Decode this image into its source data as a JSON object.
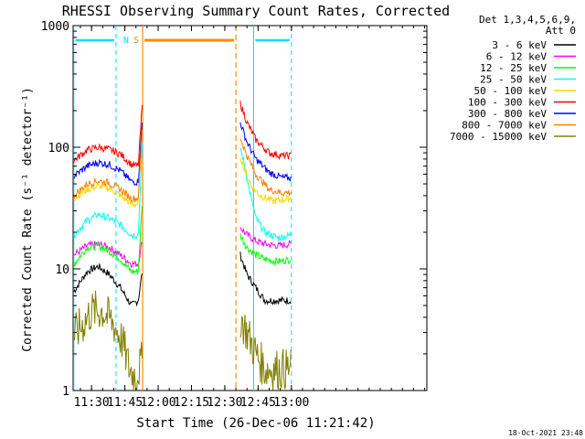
{
  "chart_data": {
    "type": "line",
    "title": "RHESSI Observing Summary Count Rates, Corrected",
    "xlabel": "Start Time (26-Dec-06 11:21:42)",
    "ylabel": "Corrected Count Rate (s⁻¹ detector⁻¹)",
    "yscale": "log",
    "ylim": [
      1,
      1000
    ],
    "xlim_minutes": [
      21.7,
      181.0
    ],
    "xtick_labels": [
      "11:30",
      "11:45",
      "12:00",
      "12:15",
      "12:30",
      "12:45",
      "13:00"
    ],
    "xtick_minutes": [
      30,
      45,
      60,
      75,
      90,
      105,
      120
    ],
    "ytick_labels": [
      "1",
      "10",
      "100",
      "1000"
    ],
    "ytick_values": [
      1,
      10,
      100,
      1000
    ],
    "legend_header": [
      "Det 1,3,4,5,6,9,",
      "Att 0"
    ],
    "legend_position": "right",
    "flags": [
      {
        "label": "",
        "color": "#00e0ff",
        "start": 22,
        "end": 41
      },
      {
        "label": "N",
        "color": "#00e0ff",
        "start": 41,
        "end": 41
      },
      {
        "label": "S",
        "color": "#ff8c00",
        "start": 53,
        "end": 53
      },
      {
        "label": "",
        "color": "#ff8c00",
        "start": 53,
        "end": 95
      },
      {
        "label": "",
        "color": "#00e0ff",
        "start": 103,
        "end": 120
      }
    ],
    "night_boundaries": [
      22,
      41,
      103,
      120
    ],
    "saa_boundaries": [
      53,
      95
    ],
    "gap": [
      54,
      97
    ],
    "footer": "18-Oct-2021 23:48",
    "series": [
      {
        "name": "3 - 6 keV",
        "color": "#000000",
        "pre": [
          [
            22,
            6.5
          ],
          [
            28,
            9.5
          ],
          [
            33,
            10.5
          ],
          [
            38,
            9
          ],
          [
            43,
            7
          ],
          [
            48,
            5
          ],
          [
            51,
            5.5
          ],
          [
            53,
            10
          ]
        ],
        "post": [
          [
            97,
            13
          ],
          [
            100,
            9
          ],
          [
            104,
            7
          ],
          [
            108,
            5.5
          ],
          [
            112,
            5.5
          ],
          [
            120,
            5.5
          ]
        ]
      },
      {
        "name": "6 - 12 keV",
        "color": "#ff00ff",
        "pre": [
          [
            22,
            13
          ],
          [
            28,
            15.5
          ],
          [
            33,
            16
          ],
          [
            38,
            15
          ],
          [
            43,
            13
          ],
          [
            48,
            11
          ],
          [
            51,
            11
          ],
          [
            53,
            18
          ]
        ],
        "post": [
          [
            97,
            22
          ],
          [
            100,
            19
          ],
          [
            104,
            17
          ],
          [
            108,
            16
          ],
          [
            114,
            15.5
          ],
          [
            120,
            16
          ]
        ]
      },
      {
        "name": "12 - 25 keV",
        "color": "#00ff00",
        "pre": [
          [
            22,
            11
          ],
          [
            28,
            15
          ],
          [
            33,
            15.5
          ],
          [
            38,
            14
          ],
          [
            43,
            12
          ],
          [
            48,
            9.5
          ],
          [
            51,
            9.5
          ],
          [
            53,
            40
          ]
        ],
        "post": [
          [
            97,
            19
          ],
          [
            100,
            15
          ],
          [
            104,
            13
          ],
          [
            108,
            12
          ],
          [
            114,
            11.5
          ],
          [
            120,
            12
          ]
        ]
      },
      {
        "name": "25 - 50 keV",
        "color": "#00ffff",
        "pre": [
          [
            22,
            19
          ],
          [
            28,
            25
          ],
          [
            33,
            28
          ],
          [
            38,
            26
          ],
          [
            43,
            23
          ],
          [
            48,
            19
          ],
          [
            51,
            19
          ],
          [
            53,
            120
          ]
        ],
        "post": [
          [
            97,
            100
          ],
          [
            99,
            70
          ],
          [
            101,
            45
          ],
          [
            104,
            26
          ],
          [
            108,
            20
          ],
          [
            114,
            18
          ],
          [
            120,
            19
          ]
        ]
      },
      {
        "name": "50 - 100 keV",
        "color": "#ffd700",
        "pre": [
          [
            22,
            38
          ],
          [
            28,
            45
          ],
          [
            33,
            48
          ],
          [
            38,
            46
          ],
          [
            43,
            40
          ],
          [
            48,
            34
          ],
          [
            51,
            34
          ],
          [
            53,
            150
          ]
        ],
        "post": [
          [
            97,
            85
          ],
          [
            99,
            65
          ],
          [
            102,
            48
          ],
          [
            106,
            40
          ],
          [
            112,
            36
          ],
          [
            120,
            38
          ]
        ]
      },
      {
        "name": "100 - 300 keV",
        "color": "#ff0000",
        "pre": [
          [
            22,
            78
          ],
          [
            28,
            95
          ],
          [
            33,
            100
          ],
          [
            38,
            96
          ],
          [
            43,
            88
          ],
          [
            48,
            72
          ],
          [
            51,
            70
          ],
          [
            53,
            250
          ]
        ],
        "post": [
          [
            97,
            230
          ],
          [
            100,
            160
          ],
          [
            104,
            115
          ],
          [
            110,
            90
          ],
          [
            116,
            85
          ],
          [
            120,
            85
          ]
        ]
      },
      {
        "name": "300 - 800 keV",
        "color": "#0000ff",
        "pre": [
          [
            22,
            58
          ],
          [
            28,
            70
          ],
          [
            33,
            75
          ],
          [
            38,
            72
          ],
          [
            43,
            64
          ],
          [
            48,
            52
          ],
          [
            51,
            52
          ],
          [
            53,
            180
          ]
        ],
        "post": [
          [
            97,
            160
          ],
          [
            100,
            110
          ],
          [
            104,
            80
          ],
          [
            110,
            62
          ],
          [
            116,
            56
          ],
          [
            120,
            56
          ]
        ]
      },
      {
        "name": "800 - 7000 keV",
        "color": "#ff8000",
        "pre": [
          [
            22,
            40
          ],
          [
            28,
            50
          ],
          [
            33,
            53
          ],
          [
            38,
            51
          ],
          [
            43,
            45
          ],
          [
            48,
            38
          ],
          [
            51,
            38
          ],
          [
            53,
            160
          ]
        ],
        "post": [
          [
            97,
            120
          ],
          [
            100,
            85
          ],
          [
            104,
            60
          ],
          [
            110,
            45
          ],
          [
            116,
            42
          ],
          [
            120,
            43
          ]
        ]
      },
      {
        "name": "7000 - 15000 keV",
        "color": "#808000",
        "pre": [
          [
            22,
            2.8
          ],
          [
            26,
            3.5
          ],
          [
            30,
            4.5
          ],
          [
            35,
            4.5
          ],
          [
            40,
            3.5
          ],
          [
            44,
            2.5
          ],
          [
            47,
            1.5
          ],
          [
            50,
            1.3
          ],
          [
            53,
            1.8
          ]
        ],
        "post": [
          [
            97,
            4
          ],
          [
            100,
            3
          ],
          [
            104,
            2
          ],
          [
            108,
            1.5
          ],
          [
            114,
            1.5
          ],
          [
            120,
            1.5
          ]
        ]
      }
    ]
  }
}
